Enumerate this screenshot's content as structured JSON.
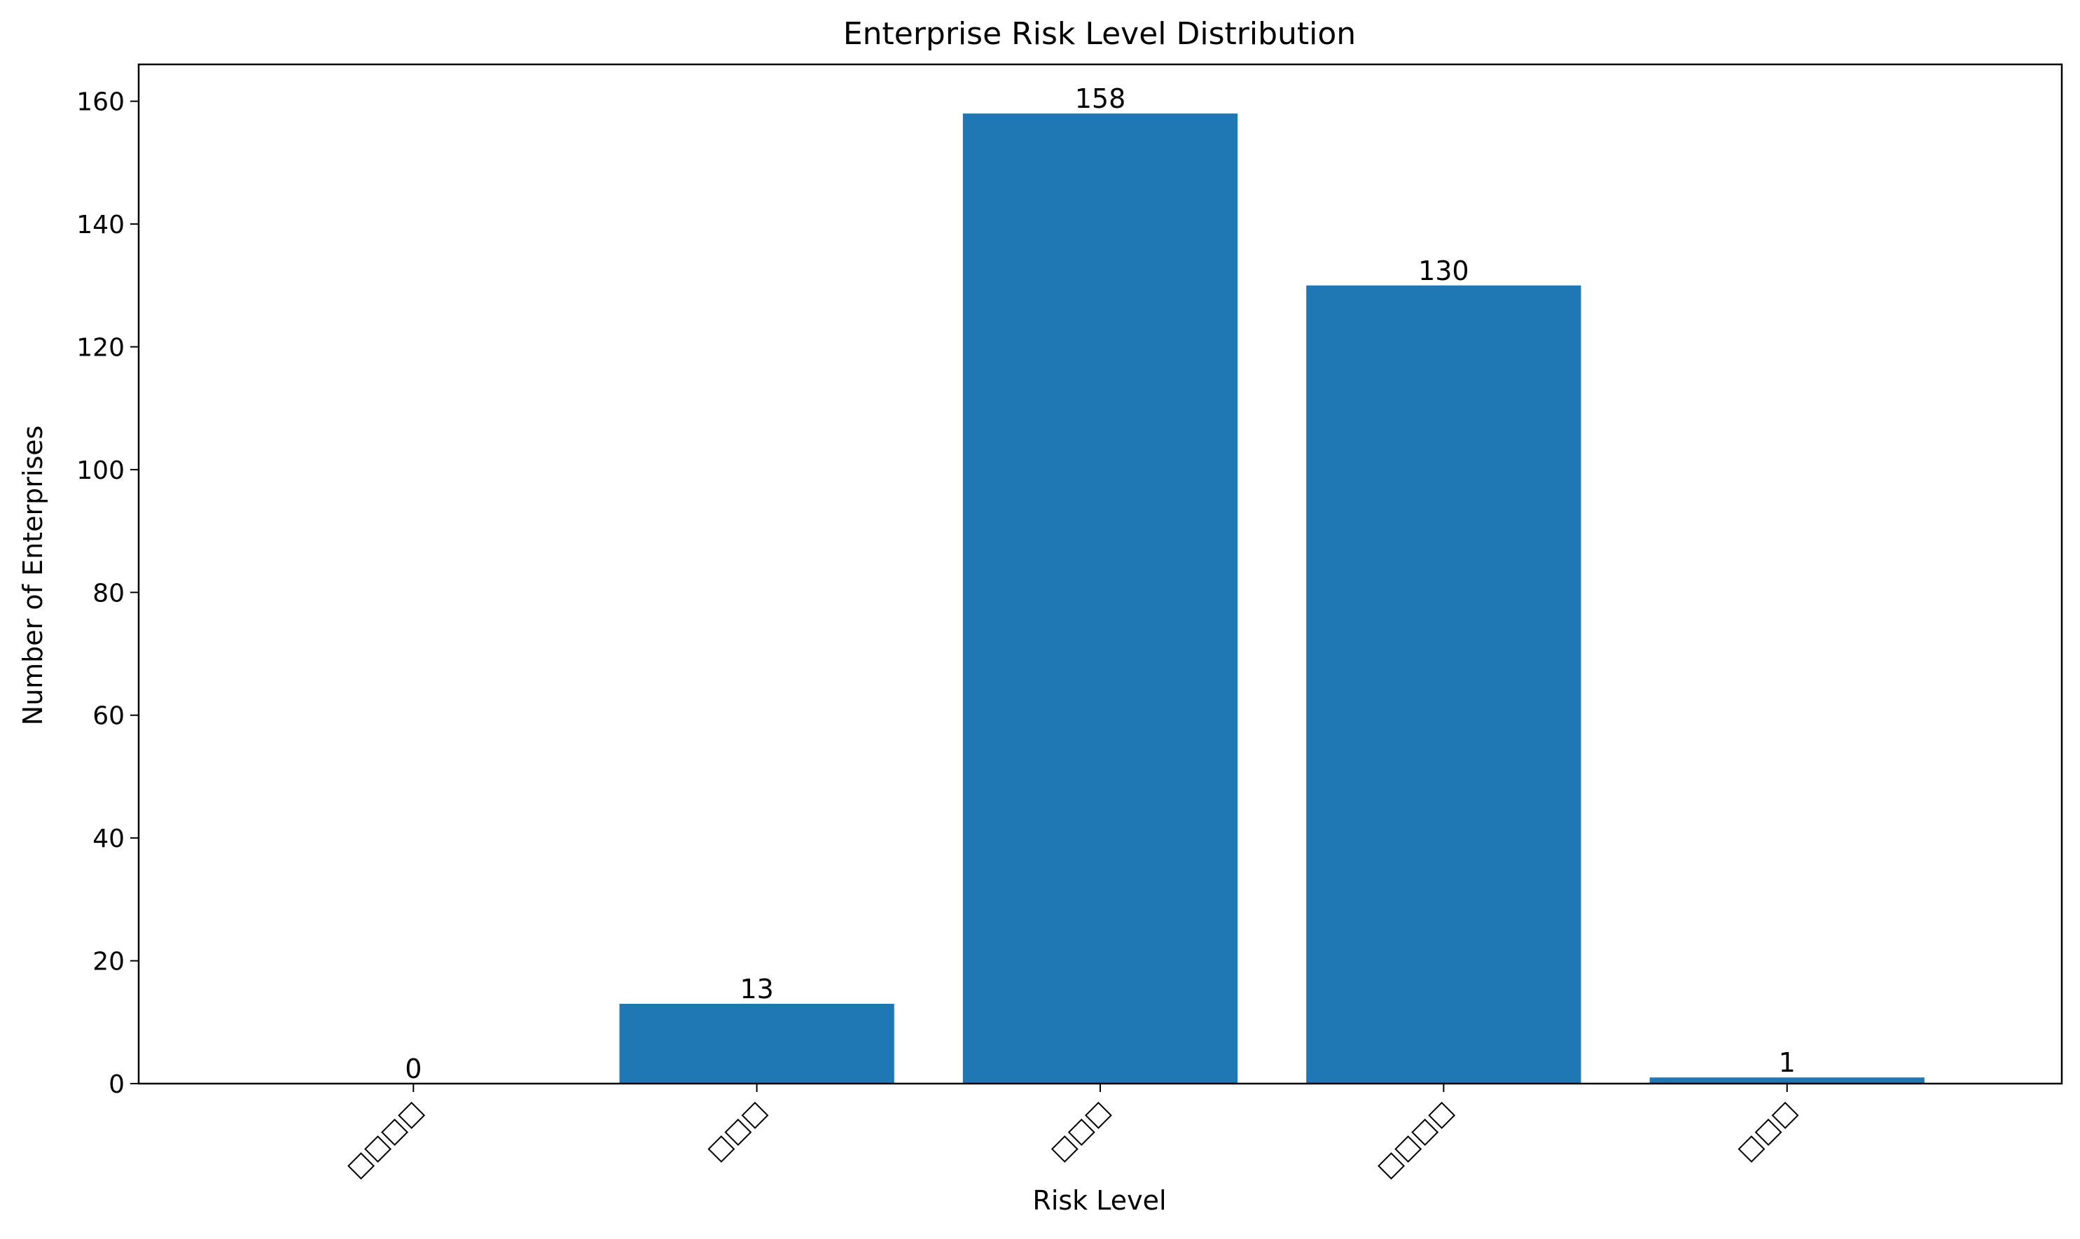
{
  "chart_data": {
    "type": "bar",
    "title": "Enterprise Risk Level Distribution",
    "xlabel": "Risk Level",
    "ylabel": "Number of Enterprises",
    "categories": [
      "□□□□",
      "□□□",
      "□□□",
      "□□□□",
      "□□□"
    ],
    "values": [
      0,
      13,
      158,
      130,
      1
    ],
    "data_labels": [
      "0",
      "13",
      "158",
      "130",
      "1"
    ],
    "ylim": [
      0,
      166
    ],
    "yticks": [
      0,
      20,
      40,
      60,
      80,
      100,
      120,
      140,
      160
    ],
    "ytick_labels": [
      "0",
      "20",
      "40",
      "60",
      "80",
      "100",
      "120",
      "140",
      "160"
    ],
    "x_tick_rotation": 45,
    "grid": false,
    "bar_color": "#1f77b4"
  }
}
